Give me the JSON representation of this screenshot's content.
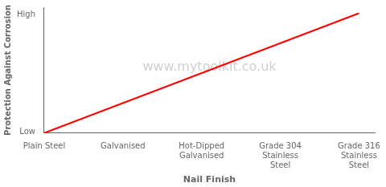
{
  "chart_data": {
    "type": "line",
    "x": [
      0,
      4
    ],
    "values": [
      0,
      4
    ],
    "color": "#ff0000",
    "xlabel": "Nail Finish",
    "ylabel": "Protection Against Corrosion",
    "xlim": [
      0,
      4.2
    ],
    "ylim": [
      0,
      4.2
    ],
    "xticks": [
      {
        "value": 0,
        "label": "Plain Steel"
      },
      {
        "value": 1,
        "label": "Galvanised"
      },
      {
        "value": 2,
        "label": "Hot-Dipped\nGalvanised"
      },
      {
        "value": 3,
        "label": "Grade 304\nStainless\nSteel"
      },
      {
        "value": 4,
        "label": "Grade 316\nStainless\nSteel"
      }
    ],
    "yticks": [
      {
        "value": 0.05,
        "label": "Low"
      },
      {
        "value": 3.95,
        "label": "High"
      }
    ],
    "annotations": [
      {
        "text": "www.mytoolkit.co.uk",
        "color": "#d0d0d0"
      }
    ],
    "grid": false
  }
}
